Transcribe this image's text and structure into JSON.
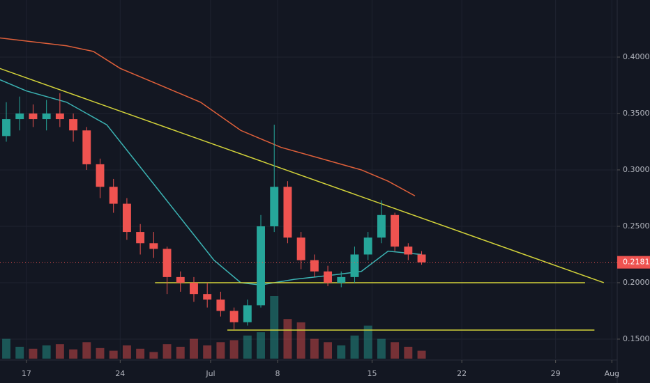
{
  "chart_data": {
    "type": "candlestick",
    "x": [
      -1.5,
      -0.5,
      0.5,
      1.5,
      2.5,
      3.5,
      4.5,
      5.5,
      6.5,
      7.5,
      8.5,
      9.5,
      10.5,
      11.5,
      12.5,
      13.5,
      14.5,
      15.5,
      16.5,
      17.5,
      18.5,
      19.5,
      20.5,
      21.5,
      22.5,
      23.5,
      24.5,
      25.5,
      26.5,
      27.5,
      28.5,
      29.5
    ],
    "open": [
      0.33,
      0.345,
      0.35,
      0.345,
      0.35,
      0.345,
      0.335,
      0.305,
      0.285,
      0.27,
      0.245,
      0.235,
      0.23,
      0.205,
      0.2,
      0.19,
      0.185,
      0.175,
      0.165,
      0.18,
      0.25,
      0.285,
      0.24,
      0.22,
      0.21,
      0.2,
      0.205,
      0.225,
      0.24,
      0.26,
      0.232,
      0.225
    ],
    "high": [
      0.36,
      0.365,
      0.358,
      0.362,
      0.368,
      0.35,
      0.338,
      0.31,
      0.292,
      0.275,
      0.252,
      0.245,
      0.232,
      0.21,
      0.205,
      0.2,
      0.192,
      0.178,
      0.185,
      0.26,
      0.34,
      0.29,
      0.245,
      0.225,
      0.215,
      0.21,
      0.232,
      0.245,
      0.273,
      0.262,
      0.235,
      0.228
    ],
    "low": [
      0.325,
      0.335,
      0.338,
      0.335,
      0.338,
      0.325,
      0.3,
      0.275,
      0.262,
      0.238,
      0.225,
      0.222,
      0.19,
      0.192,
      0.183,
      0.178,
      0.17,
      0.158,
      0.162,
      0.178,
      0.245,
      0.235,
      0.212,
      0.205,
      0.197,
      0.196,
      0.2,
      0.22,
      0.235,
      0.228,
      0.22,
      0.216
    ],
    "close": [
      0.345,
      0.35,
      0.345,
      0.35,
      0.345,
      0.335,
      0.305,
      0.285,
      0.27,
      0.245,
      0.235,
      0.23,
      0.205,
      0.2,
      0.19,
      0.185,
      0.175,
      0.165,
      0.18,
      0.25,
      0.285,
      0.24,
      0.22,
      0.21,
      0.2,
      0.205,
      0.225,
      0.24,
      0.26,
      0.232,
      0.225,
      0.218
    ],
    "volume": [
      30,
      18,
      15,
      20,
      22,
      14,
      25,
      16,
      12,
      20,
      15,
      10,
      22,
      18,
      30,
      20,
      25,
      28,
      35,
      40,
      95,
      60,
      55,
      30,
      25,
      20,
      35,
      50,
      30,
      25,
      18,
      12
    ],
    "up_color": "#26a69a",
    "down_color": "#ef5350",
    "xlim": [
      -1.97,
      44.1
    ],
    "ylim": [
      0.1327,
      0.4506
    ],
    "yticks": [
      {
        "value": 0.15,
        "label": "0.1500"
      },
      {
        "value": 0.2,
        "label": "0.2000"
      },
      {
        "value": 0.25,
        "label": "0.2500"
      },
      {
        "value": 0.3,
        "label": "0.3000"
      },
      {
        "value": 0.35,
        "label": "0.3500"
      },
      {
        "value": 0.4,
        "label": "0.4000"
      }
    ],
    "xticks": [
      {
        "value": 0,
        "label": "17"
      },
      {
        "value": 7,
        "label": "24"
      },
      {
        "value": 13.75,
        "label": "Jul"
      },
      {
        "value": 18.75,
        "label": "8"
      },
      {
        "value": 25.8,
        "label": "15"
      },
      {
        "value": 32.5,
        "label": "22"
      },
      {
        "value": 39.5,
        "label": "29"
      },
      {
        "value": 43.7,
        "label": "Aug"
      }
    ],
    "grid": true,
    "overlays": [
      {
        "color": "#e0603a",
        "x": [
          -2,
          3,
          5,
          7,
          10,
          13,
          16,
          19,
          22,
          25,
          27,
          29
        ],
        "values": [
          0.417,
          0.41,
          0.405,
          0.39,
          0.375,
          0.36,
          0.335,
          0.32,
          0.31,
          0.3,
          0.29,
          0.277
        ]
      },
      {
        "color": "#3bb3b3",
        "x": [
          -2,
          0,
          3,
          6,
          8,
          10,
          12,
          14,
          16,
          17.5,
          20,
          23,
          25,
          27,
          29.5
        ],
        "values": [
          0.38,
          0.37,
          0.36,
          0.34,
          0.31,
          0.28,
          0.25,
          0.22,
          0.2,
          0.198,
          0.203,
          0.207,
          0.21,
          0.228,
          0.225
        ]
      }
    ],
    "trendlines": [
      {
        "color": "#d4d43a",
        "x": [
          -2,
          43.1
        ],
        "values": [
          0.39,
          0.2
        ]
      },
      {
        "color": "#d4d43a",
        "x": [
          9.6,
          41.7
        ],
        "values": [
          0.2,
          0.2
        ]
      },
      {
        "color": "#d4d43a",
        "x": [
          15,
          42.4
        ],
        "values": [
          0.158,
          0.158
        ]
      }
    ],
    "last_price": {
      "value": 0.2181,
      "label": "0.2181"
    },
    "last_price_color": "#ef5350"
  }
}
